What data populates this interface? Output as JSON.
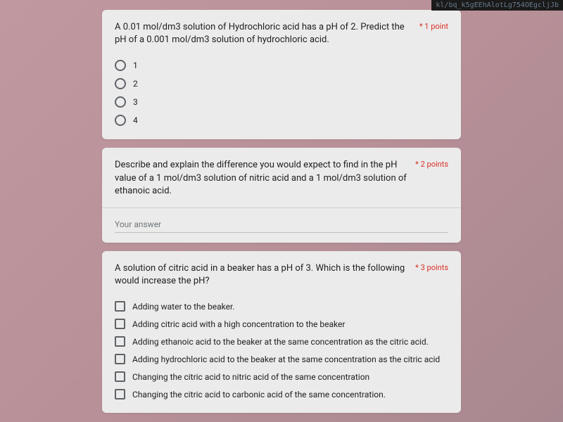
{
  "url_fragment": "kl/bq_k5gEEhAlotLg754OEgcljJb",
  "questions": [
    {
      "text": "A 0.01 mol/dm3 solution of Hydrochloric acid has a pH of 2. Predict the pH of a 0.001 mol/dm3 solution of hydrochloric acid.",
      "points": "1 point",
      "type": "radio",
      "options": [
        "1",
        "2",
        "3",
        "4"
      ]
    },
    {
      "text": "Describe and explain the difference you would expect to find in the pH value of a 1 mol/dm3 solution of nitric acid and a 1 mol/dm3 solution of ethanoic acid.",
      "points": "2 points",
      "type": "text",
      "placeholder": "Your answer"
    },
    {
      "text": "A solution of citric acid in a beaker has a pH of 3. Which is the following would increase the pH?",
      "points": "3 points",
      "type": "checkbox",
      "options": [
        "Adding water to the beaker.",
        "Adding citric acid with a high concentration to the beaker",
        "Adding ethanoic acid to the beaker at the same concentration as the citric acid.",
        "Adding hydrochloric acid to the beaker at the same concentration as the citric acid",
        "Changing the citric acid to nitric acid of the same concentration",
        "Changing the citric acid to carbonic acid of the same concentration."
      ]
    }
  ]
}
